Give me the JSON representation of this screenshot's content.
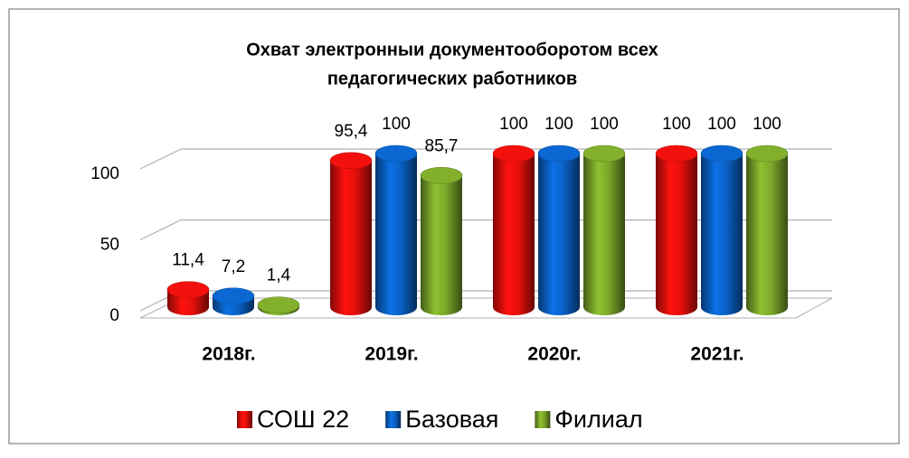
{
  "chart_data": {
    "type": "bar3d",
    "title": [
      "Охват электронныи документооборотом всех",
      "педагогических работников"
    ],
    "categories": [
      "2018г.",
      "2019г.",
      "2020г.",
      "2021г."
    ],
    "series": [
      {
        "name": "СОШ 22",
        "color": "#e8100c",
        "values": [
          11.4,
          95.4,
          100,
          100
        ],
        "value_labels": [
          "11,4",
          "95,4",
          "100",
          "100"
        ]
      },
      {
        "name": "Базовая",
        "color": "#0a62c8",
        "values": [
          7.2,
          100,
          100,
          100
        ],
        "value_labels": [
          "7,2",
          "100",
          "100",
          "100"
        ]
      },
      {
        "name": "Филиал",
        "color": "#7ca82a",
        "values": [
          1.4,
          85.7,
          100,
          100
        ],
        "value_labels": [
          "1,4",
          "85,7",
          "100",
          "100"
        ]
      }
    ],
    "ylim": [
      0,
      100
    ],
    "yticks": [
      0,
      50,
      100
    ],
    "grid": true,
    "legend": "bottom"
  }
}
